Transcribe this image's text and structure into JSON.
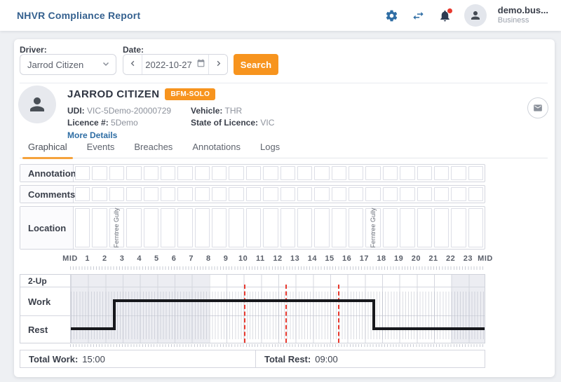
{
  "header": {
    "title": "NHVR Compliance Report",
    "user_name": "demo.bus...",
    "user_role": "Business",
    "icons": [
      "gear-icon",
      "swap-arrows-icon",
      "bell-icon",
      "avatar-person-icon"
    ]
  },
  "search": {
    "driver_label": "Driver:",
    "driver_value": "Jarrod Citizen",
    "date_label": "Date:",
    "date_value": "2022-10-27",
    "search_label": "Search",
    "icons": [
      "chevron-down-icon",
      "chevron-left-icon",
      "calendar-icon",
      "chevron-right-icon"
    ]
  },
  "driver": {
    "name": "JARROD CITIZEN",
    "badge": "BFM-SOLO",
    "udi_label": "UDI:",
    "udi": "VIC-5Demo-20000729",
    "licence_label": "Licence #:",
    "licence": "5Demo",
    "vehicle_label": "Vehicle:",
    "vehicle": "THR",
    "state_label": "State of Licence:",
    "state": "VIC",
    "more_details": "More Details",
    "icons": [
      "avatar-person-icon",
      "envelope-icon"
    ]
  },
  "tabs": [
    {
      "label": "Graphical",
      "active": true
    },
    {
      "label": "Events",
      "active": false
    },
    {
      "label": "Breaches",
      "active": false
    },
    {
      "label": "Annotations",
      "active": false
    },
    {
      "label": "Logs",
      "active": false
    }
  ],
  "grid_rows": [
    {
      "label": "Annotation",
      "cells": 24,
      "entries": []
    },
    {
      "label": "Comments",
      "cells": 24,
      "entries": []
    },
    {
      "label": "Location",
      "cells": 24,
      "entries": [
        {
          "hour": 2,
          "text": "Ferntree Gully"
        },
        {
          "hour": 17,
          "text": "Ferntree Gully"
        }
      ]
    }
  ],
  "chart_data": {
    "type": "step-timeline",
    "x_labels": [
      "MID",
      "1",
      "2",
      "3",
      "4",
      "5",
      "6",
      "7",
      "8",
      "9",
      "10",
      "11",
      "12",
      "13",
      "14",
      "15",
      "16",
      "17",
      "18",
      "19",
      "20",
      "21",
      "22",
      "23",
      "MID"
    ],
    "x_range_hours": [
      0,
      24
    ],
    "rows": [
      "2-Up",
      "Work",
      "Rest"
    ],
    "night_shading_hours": [
      [
        0,
        8
      ],
      [
        22,
        24
      ]
    ],
    "segments": [
      {
        "state": "Rest",
        "from": 0,
        "to": 2.5
      },
      {
        "state": "Work",
        "from": 2.5,
        "to": 17.5
      },
      {
        "state": "Rest",
        "from": 17.5,
        "to": 24
      }
    ],
    "red_markers_hours": [
      10.05,
      12.45,
      15.5
    ],
    "totals": {
      "work_label": "Total Work:",
      "work_value": "15:00",
      "rest_label": "Total Rest:",
      "rest_value": "09:00"
    }
  },
  "colors": {
    "accent_orange": "#f7941e",
    "title_blue": "#35618f",
    "icon_blue": "#2e6da4",
    "alert_red": "#e8392e",
    "line_black": "#17181c",
    "night_shade": "#ecedf2"
  }
}
